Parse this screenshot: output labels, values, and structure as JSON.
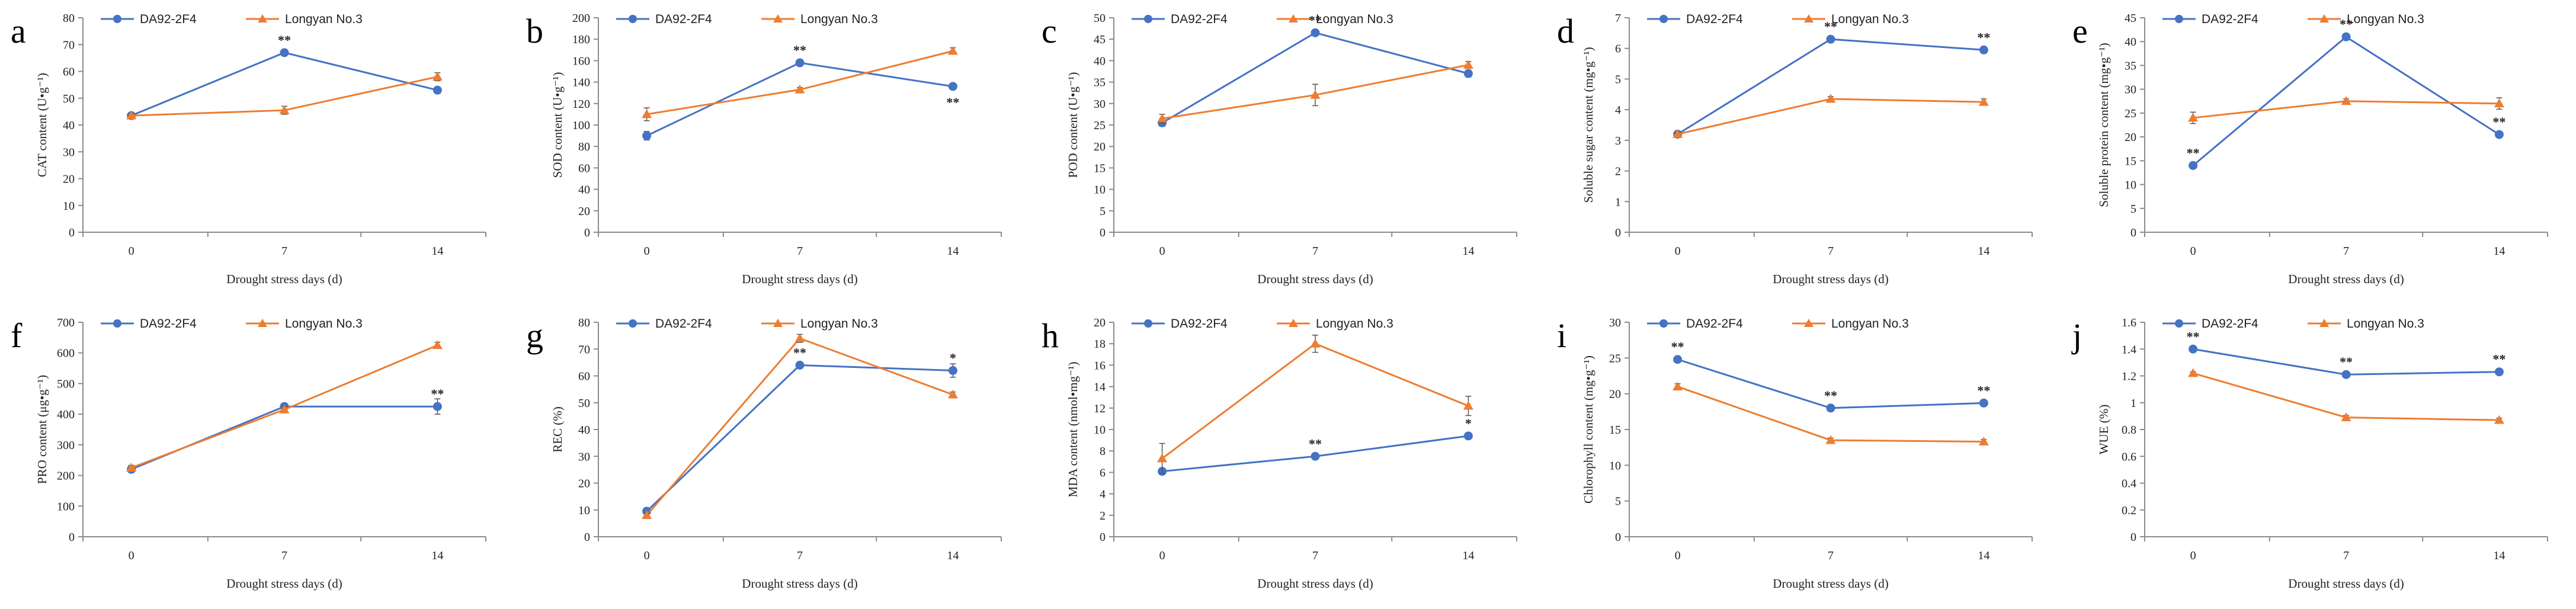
{
  "colors": {
    "blue": "#4472C4",
    "orange": "#ED7D31",
    "axis": "#8c8c8c",
    "text": "#222222"
  },
  "chart_data": [
    {
      "letter": "a",
      "type": "line",
      "ylabel": "CAT content (U•g⁻¹)",
      "xlabel": "Drought stress days (d)",
      "categories": [
        "0",
        "7",
        "14"
      ],
      "ylim": [
        0,
        80
      ],
      "ystep": 10,
      "yticks": [
        "0",
        "10",
        "20",
        "30",
        "40",
        "50",
        "60",
        "70",
        "80"
      ],
      "series": [
        {
          "name": "DA92-2F4",
          "values": [
            43.5,
            67,
            53
          ],
          "err": [
            0.6,
            1.0,
            1.2
          ]
        },
        {
          "name": "Longyan No.3",
          "values": [
            43.5,
            45.5,
            58
          ],
          "err": [
            0.6,
            1.5,
            1.5
          ]
        }
      ],
      "annotations": [
        {
          "cat": 1,
          "series": 0,
          "text": "**",
          "pos": "above"
        }
      ]
    },
    {
      "letter": "b",
      "type": "line",
      "ylabel": "SOD content (U•g⁻¹)",
      "xlabel": "Drought stress days (d)",
      "categories": [
        "0",
        "7",
        "14"
      ],
      "ylim": [
        0,
        200
      ],
      "ystep": 20,
      "yticks": [
        "0",
        "20",
        "40",
        "60",
        "80",
        "100",
        "120",
        "140",
        "160",
        "180",
        "200"
      ],
      "series": [
        {
          "name": "DA92-2F4",
          "values": [
            90,
            158,
            136
          ],
          "err": [
            4,
            2,
            2
          ]
        },
        {
          "name": "Longyan No.3",
          "values": [
            110,
            133,
            169
          ],
          "err": [
            6,
            2,
            3
          ]
        }
      ],
      "annotations": [
        {
          "cat": 1,
          "series": 0,
          "text": "**",
          "pos": "above"
        },
        {
          "cat": 2,
          "series": 0,
          "text": "**",
          "pos": "below"
        }
      ]
    },
    {
      "letter": "c",
      "type": "line",
      "ylabel": "POD content (U•g⁻¹)",
      "xlabel": "Drought stress days (d)",
      "categories": [
        "0",
        "7",
        "14"
      ],
      "ylim": [
        0,
        50
      ],
      "ystep": 5,
      "yticks": [
        "0",
        "5",
        "10",
        "15",
        "20",
        "25",
        "30",
        "35",
        "40",
        "45",
        "50"
      ],
      "series": [
        {
          "name": "DA92-2F4",
          "values": [
            25.5,
            46.5,
            37
          ],
          "err": [
            0.8,
            0.5,
            0.8
          ]
        },
        {
          "name": "Longyan No.3",
          "values": [
            26.5,
            32,
            39
          ],
          "err": [
            1.0,
            2.5,
            0.8
          ]
        }
      ],
      "annotations": [
        {
          "cat": 1,
          "series": 0,
          "text": "**",
          "pos": "above"
        }
      ]
    },
    {
      "letter": "d",
      "type": "line",
      "ylabel": "Soluble sugar content (mg•g⁻¹)",
      "xlabel": "Drought stress days (d)",
      "categories": [
        "0",
        "7",
        "14"
      ],
      "ylim": [
        0,
        7
      ],
      "ystep": 1,
      "yticks": [
        "0",
        "1",
        "2",
        "3",
        "4",
        "5",
        "6",
        "7"
      ],
      "series": [
        {
          "name": "DA92-2F4",
          "values": [
            3.2,
            6.3,
            5.95
          ],
          "err": [
            0.06,
            0.06,
            0.06
          ]
        },
        {
          "name": "Longyan No.3",
          "values": [
            3.2,
            4.35,
            4.25
          ],
          "err": [
            0.06,
            0.08,
            0.1
          ]
        }
      ],
      "annotations": [
        {
          "cat": 1,
          "series": 0,
          "text": "**",
          "pos": "above"
        },
        {
          "cat": 2,
          "series": 0,
          "text": "**",
          "pos": "above"
        }
      ]
    },
    {
      "letter": "e",
      "type": "line",
      "ylabel": "Soluble protein content (mg•g⁻¹)",
      "xlabel": "Drought stress days (d)",
      "categories": [
        "0",
        "7",
        "14"
      ],
      "ylim": [
        0,
        45
      ],
      "ystep": 5,
      "yticks": [
        "0",
        "5",
        "10",
        "15",
        "20",
        "25",
        "30",
        "35",
        "40",
        "45"
      ],
      "series": [
        {
          "name": "DA92-2F4",
          "values": [
            14,
            41,
            20.5
          ],
          "err": [
            0.4,
            0.4,
            0.5
          ]
        },
        {
          "name": "Longyan No.3",
          "values": [
            24,
            27.5,
            27
          ],
          "err": [
            1.2,
            0.5,
            1.2
          ]
        }
      ],
      "annotations": [
        {
          "cat": 0,
          "series": 0,
          "text": "**",
          "pos": "above"
        },
        {
          "cat": 1,
          "series": 0,
          "text": "**",
          "pos": "above"
        },
        {
          "cat": 2,
          "series": 0,
          "text": "**",
          "pos": "above"
        }
      ]
    },
    {
      "letter": "f",
      "type": "line",
      "ylabel": "PRO content (μg•g⁻¹)",
      "xlabel": "Drought stress days (d)",
      "categories": [
        "0",
        "7",
        "14"
      ],
      "ylim": [
        0,
        700
      ],
      "ystep": 100,
      "yticks": [
        "0",
        "100",
        "200",
        "300",
        "400",
        "500",
        "600",
        "700"
      ],
      "series": [
        {
          "name": "DA92-2F4",
          "values": [
            220,
            425,
            425
          ],
          "err": [
            8,
            10,
            25
          ]
        },
        {
          "name": "Longyan No.3",
          "values": [
            225,
            415,
            625
          ],
          "err": [
            8,
            10,
            10
          ]
        }
      ],
      "annotations": [
        {
          "cat": 2,
          "series": 0,
          "text": "**",
          "pos": "above"
        }
      ]
    },
    {
      "letter": "g",
      "type": "line",
      "ylabel": "REC (%)",
      "xlabel": "Drought stress days (d)",
      "categories": [
        "0",
        "7",
        "14"
      ],
      "ylim": [
        0,
        80
      ],
      "ystep": 10,
      "yticks": [
        "0",
        "10",
        "20",
        "30",
        "40",
        "50",
        "60",
        "70",
        "80"
      ],
      "series": [
        {
          "name": "DA92-2F4",
          "values": [
            9.5,
            64,
            62
          ],
          "err": [
            0.8,
            1.0,
            2.5
          ]
        },
        {
          "name": "Longyan No.3",
          "values": [
            8,
            74,
            53
          ],
          "err": [
            0.8,
            1.5,
            1.0
          ]
        }
      ],
      "annotations": [
        {
          "cat": 1,
          "series": 0,
          "text": "**",
          "pos": "above"
        },
        {
          "cat": 2,
          "series": 0,
          "text": "*",
          "pos": "above"
        }
      ]
    },
    {
      "letter": "h",
      "type": "line",
      "ylabel": "MDA content (nmol•mg⁻¹)",
      "xlabel": "Drought stress days (d)",
      "categories": [
        "0",
        "7",
        "14"
      ],
      "ylim": [
        0,
        20
      ],
      "ystep": 2,
      "yticks": [
        "0",
        "2",
        "4",
        "6",
        "8",
        "10",
        "12",
        "14",
        "16",
        "18",
        "20"
      ],
      "series": [
        {
          "name": "DA92-2F4",
          "values": [
            6.1,
            7.5,
            9.4
          ],
          "err": [
            0.2,
            0.2,
            0.2
          ]
        },
        {
          "name": "Longyan No.3",
          "values": [
            7.3,
            18,
            12.2
          ],
          "err": [
            1.4,
            0.8,
            0.9
          ]
        }
      ],
      "annotations": [
        {
          "cat": 1,
          "series": 0,
          "text": "**",
          "pos": "above"
        },
        {
          "cat": 2,
          "series": 0,
          "text": "*",
          "pos": "above"
        }
      ]
    },
    {
      "letter": "i",
      "type": "line",
      "ylabel": "Chlorophyll content (mg•g⁻¹)",
      "xlabel": "Drought stress days (d)",
      "categories": [
        "0",
        "7",
        "14"
      ],
      "ylim": [
        0,
        30
      ],
      "ystep": 5,
      "yticks": [
        "0",
        "5",
        "10",
        "15",
        "20",
        "25",
        "30"
      ],
      "series": [
        {
          "name": "DA92-2F4",
          "values": [
            24.8,
            18,
            18.7
          ],
          "err": [
            0.3,
            0.3,
            0.3
          ]
        },
        {
          "name": "Longyan No.3",
          "values": [
            21,
            13.5,
            13.3
          ],
          "err": [
            0.4,
            0.3,
            0.3
          ]
        }
      ],
      "annotations": [
        {
          "cat": 0,
          "series": 0,
          "text": "**",
          "pos": "above"
        },
        {
          "cat": 1,
          "series": 0,
          "text": "**",
          "pos": "above"
        },
        {
          "cat": 2,
          "series": 0,
          "text": "**",
          "pos": "above"
        }
      ]
    },
    {
      "letter": "j",
      "type": "line",
      "ylabel": "WUE (%)",
      "xlabel": "Drought stress days (d)",
      "categories": [
        "0",
        "7",
        "14"
      ],
      "ylim": [
        0,
        1.6
      ],
      "ystep": 0.2,
      "yticks": [
        "0",
        "0.2",
        "0.4",
        "0.6",
        "0.8",
        "1",
        "1.2",
        "1.4",
        "1.6"
      ],
      "series": [
        {
          "name": "DA92-2F4",
          "values": [
            1.4,
            1.21,
            1.23
          ],
          "err": [
            0.01,
            0.01,
            0.01
          ]
        },
        {
          "name": "Longyan No.3",
          "values": [
            1.22,
            0.89,
            0.87
          ],
          "err": [
            0.01,
            0.015,
            0.015
          ]
        }
      ],
      "annotations": [
        {
          "cat": 0,
          "series": 0,
          "text": "**",
          "pos": "above"
        },
        {
          "cat": 1,
          "series": 0,
          "text": "**",
          "pos": "above"
        },
        {
          "cat": 2,
          "series": 0,
          "text": "**",
          "pos": "above"
        }
      ]
    }
  ]
}
